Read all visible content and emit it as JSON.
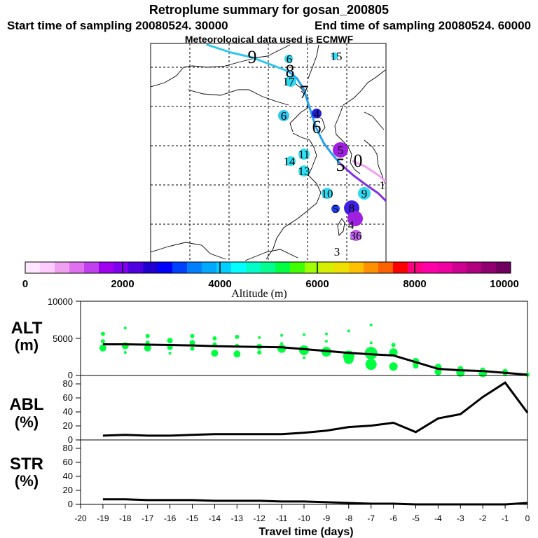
{
  "header": {
    "title": "Retroplume summary for gosan_200805",
    "start_label": "Start time of sampling 20080524. 30000",
    "end_label": "End time of sampling 20080524. 60000",
    "met_label": "Meteorological data used is ECMWF"
  },
  "colorbar": {
    "tick_labels": [
      "0",
      "2000",
      "4000",
      "6000",
      "8000",
      "10000"
    ],
    "label": "Altitude  (m)",
    "colors": [
      "#ffe6ff",
      "#ffccff",
      "#f0a0f0",
      "#e070f0",
      "#c040f0",
      "#a000f0",
      "#8000f0",
      "#5000e0",
      "#2000d0",
      "#0000ff",
      "#0040ff",
      "#0080ff",
      "#00a8ff",
      "#00d0ff",
      "#00ffff",
      "#00ffc8",
      "#00ff90",
      "#00ff40",
      "#40ff00",
      "#a0ff00",
      "#d8f000",
      "#f0e000",
      "#ffc000",
      "#ff9000",
      "#ff6000",
      "#ff0000",
      "#ff0080",
      "#ff00a8",
      "#f000a0",
      "#d00090",
      "#b00080",
      "#900070",
      "#700060"
    ]
  },
  "map": {
    "trajectory_colors": [
      "#30c8f0",
      "#20a0f0",
      "#8030e0",
      "#f0a0f0"
    ],
    "markers": [
      {
        "label": "9",
        "color": "#30c8f0"
      },
      {
        "label": "8",
        "color": "#30c8f0"
      },
      {
        "label": "7",
        "color": "#30c8f0"
      },
      {
        "label": "6",
        "color": "#30c8f0"
      },
      {
        "label": "5",
        "color": "#8030e0"
      },
      {
        "label": "0",
        "color": "#f0a0f0"
      },
      {
        "label": "15",
        "color": "#30d8f0"
      },
      {
        "label": "6",
        "color": "#30d8f0"
      },
      {
        "label": "17",
        "color": "#30d8f0"
      },
      {
        "label": "6",
        "color": "#30c8f0"
      },
      {
        "label": "4",
        "color": "#2020e0"
      },
      {
        "label": "5",
        "color": "#a020e0"
      },
      {
        "label": "11",
        "color": "#30e0f0"
      },
      {
        "label": "14",
        "color": "#30e0f0"
      },
      {
        "label": "13",
        "color": "#30e0f0"
      },
      {
        "label": "10",
        "color": "#30d8f0"
      },
      {
        "label": "9",
        "color": "#30d8f0"
      },
      {
        "label": "5",
        "color": "#2040f0"
      },
      {
        "label": "8",
        "color": "#4020e0"
      },
      {
        "label": "4",
        "color": "#a020e0"
      },
      {
        "label": "36",
        "color": "#c060f0"
      },
      {
        "label": "3",
        "color": "#000000"
      },
      {
        "label": "1",
        "color": "#000000"
      }
    ]
  },
  "chart_data": [
    {
      "type": "scatter",
      "panel": "ALT",
      "ylabel_line1": "ALT",
      "ylabel_line2": "(m)",
      "ylim": [
        0,
        10000
      ],
      "yticks": [
        "0",
        "5000",
        "10000"
      ],
      "line_color": "#000000",
      "bubble_color": "#00ff40",
      "x": [
        -19,
        -18,
        -17,
        -16,
        -15,
        -14,
        -13,
        -12,
        -11,
        -10,
        -9,
        -8,
        -7,
        -6,
        -5,
        -4,
        -3,
        -2,
        -1,
        0
      ],
      "values": [
        4200,
        4200,
        4150,
        4100,
        4050,
        3950,
        3900,
        3850,
        3800,
        3550,
        3300,
        3050,
        2850,
        2700,
        1800,
        900,
        700,
        600,
        350,
        100
      ],
      "bubbles": [
        {
          "x": -19.0,
          "y": 5600,
          "r": 3
        },
        {
          "x": -19.0,
          "y": 4600,
          "r": 3
        },
        {
          "x": -19.0,
          "y": 3700,
          "r": 5
        },
        {
          "x": -18.0,
          "y": 6400,
          "r": 2
        },
        {
          "x": -18.0,
          "y": 4000,
          "r": 5
        },
        {
          "x": -18.0,
          "y": 3100,
          "r": 2
        },
        {
          "x": -17.0,
          "y": 5300,
          "r": 3
        },
        {
          "x": -17.0,
          "y": 4400,
          "r": 3
        },
        {
          "x": -17.0,
          "y": 3700,
          "r": 5
        },
        {
          "x": -16.0,
          "y": 4700,
          "r": 4
        },
        {
          "x": -16.0,
          "y": 3800,
          "r": 4
        },
        {
          "x": -16.0,
          "y": 3000,
          "r": 2
        },
        {
          "x": -15.0,
          "y": 5300,
          "r": 3
        },
        {
          "x": -15.0,
          "y": 4400,
          "r": 4
        },
        {
          "x": -15.0,
          "y": 3600,
          "r": 3
        },
        {
          "x": -14.0,
          "y": 5000,
          "r": 3
        },
        {
          "x": -14.0,
          "y": 4200,
          "r": 3
        },
        {
          "x": -14.0,
          "y": 3000,
          "r": 5
        },
        {
          "x": -13.0,
          "y": 5200,
          "r": 3
        },
        {
          "x": -13.0,
          "y": 4000,
          "r": 3
        },
        {
          "x": -13.0,
          "y": 2900,
          "r": 5
        },
        {
          "x": -12.0,
          "y": 5100,
          "r": 2
        },
        {
          "x": -12.0,
          "y": 3900,
          "r": 4
        },
        {
          "x": -12.0,
          "y": 3100,
          "r": 3
        },
        {
          "x": -11.0,
          "y": 5400,
          "r": 2
        },
        {
          "x": -11.0,
          "y": 4300,
          "r": 2
        },
        {
          "x": -11.0,
          "y": 3600,
          "r": 6
        },
        {
          "x": -10.0,
          "y": 5500,
          "r": 2
        },
        {
          "x": -10.0,
          "y": 3400,
          "r": 7
        },
        {
          "x": -10.0,
          "y": 2400,
          "r": 2
        },
        {
          "x": -9.0,
          "y": 5600,
          "r": 2
        },
        {
          "x": -9.0,
          "y": 4600,
          "r": 2
        },
        {
          "x": -9.0,
          "y": 3200,
          "r": 7
        },
        {
          "x": -8.0,
          "y": 6000,
          "r": 2
        },
        {
          "x": -8.0,
          "y": 2600,
          "r": 8
        },
        {
          "x": -8.0,
          "y": 2200,
          "r": 7
        },
        {
          "x": -7.0,
          "y": 6800,
          "r": 2
        },
        {
          "x": -7.0,
          "y": 4400,
          "r": 2
        },
        {
          "x": -7.0,
          "y": 3000,
          "r": 9
        },
        {
          "x": -7.0,
          "y": 1500,
          "r": 8
        },
        {
          "x": -6.0,
          "y": 4100,
          "r": 3
        },
        {
          "x": -6.0,
          "y": 3100,
          "r": 6
        },
        {
          "x": -6.0,
          "y": 1200,
          "r": 6
        },
        {
          "x": -5.0,
          "y": 1900,
          "r": 5
        },
        {
          "x": -5.0,
          "y": 1300,
          "r": 4
        },
        {
          "x": -4.0,
          "y": 1100,
          "r": 5
        },
        {
          "x": -4.0,
          "y": 500,
          "r": 5
        },
        {
          "x": -3.0,
          "y": 900,
          "r": 4
        },
        {
          "x": -3.0,
          "y": 400,
          "r": 6
        },
        {
          "x": -2.0,
          "y": 800,
          "r": 3
        },
        {
          "x": -2.0,
          "y": 350,
          "r": 6
        },
        {
          "x": -1.0,
          "y": 500,
          "r": 4
        },
        {
          "x": -1.0,
          "y": 200,
          "r": 3
        },
        {
          "x": 0.0,
          "y": 100,
          "r": 3
        }
      ]
    },
    {
      "type": "line",
      "panel": "ABL",
      "ylabel_line1": "ABL",
      "ylabel_line2": "(%)",
      "ylim": [
        0,
        90
      ],
      "yticks": [
        "0",
        "20",
        "40",
        "60",
        "80"
      ],
      "x": [
        -19,
        -18,
        -17,
        -16,
        -15,
        -14,
        -13,
        -12,
        -11,
        -10,
        -9,
        -8,
        -7,
        -6,
        -5,
        -4,
        -3,
        -2,
        -1,
        0
      ],
      "values": [
        6,
        7,
        6,
        6,
        7,
        8,
        8,
        8,
        8,
        10,
        13,
        18,
        20,
        24,
        11,
        30,
        36,
        60,
        80,
        38
      ]
    },
    {
      "type": "line",
      "panel": "STR",
      "ylabel_line1": "STR",
      "ylabel_line2": "(%)",
      "ylim": [
        0,
        90
      ],
      "yticks": [
        "0",
        "20",
        "40",
        "60",
        "80"
      ],
      "x": [
        -19,
        -18,
        -17,
        -16,
        -15,
        -14,
        -13,
        -12,
        -11,
        -10,
        -9,
        -8,
        -7,
        -6,
        -5,
        -4,
        -3,
        -2,
        -1,
        0
      ],
      "values": [
        7,
        7,
        6,
        6,
        6,
        5,
        5,
        5,
        4,
        4,
        3,
        2,
        1,
        1,
        0,
        0,
        0,
        0,
        0,
        2
      ]
    }
  ],
  "xaxis": {
    "tick_labels": [
      "-20",
      "-19",
      "-18",
      "-17",
      "-16",
      "-15",
      "-14",
      "-13",
      "-12",
      "-11",
      "-10",
      "-9",
      "-8",
      "-7",
      "-6",
      "-5",
      "-4",
      "-3",
      "-2",
      "-1",
      "0"
    ],
    "label": "Travel time (days)"
  }
}
